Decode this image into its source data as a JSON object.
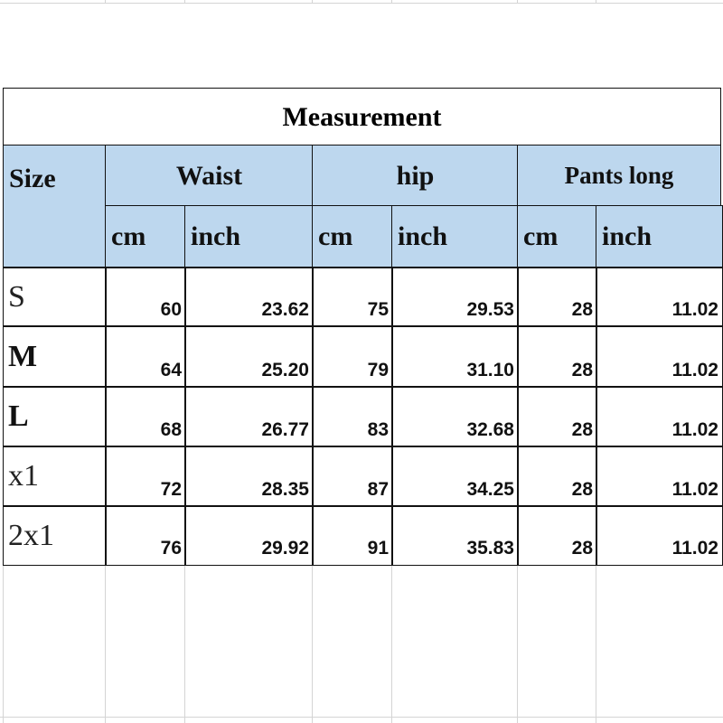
{
  "title": "Measurement",
  "headers": {
    "size": "Size",
    "groups": [
      "Waist",
      "hip",
      "Pants long"
    ],
    "units": [
      "cm",
      "inch",
      "cm",
      "inch",
      "cm",
      "inch"
    ]
  },
  "header_fill": "#bdd7ee",
  "rows": [
    {
      "size": "S",
      "values": [
        "60",
        "23.62",
        "75",
        "29.53",
        "28",
        "11.02"
      ]
    },
    {
      "size": "M",
      "values": [
        "64",
        "25.20",
        "79",
        "31.10",
        "28",
        "11.02"
      ]
    },
    {
      "size": "L",
      "values": [
        "68",
        "26.77",
        "83",
        "32.68",
        "28",
        "11.02"
      ]
    },
    {
      "size": "x1",
      "values": [
        "72",
        "28.35",
        "87",
        "34.25",
        "28",
        "11.02"
      ]
    },
    {
      "size": "2x1",
      "values": [
        "76",
        "29.92",
        "91",
        "35.83",
        "28",
        "11.02"
      ]
    }
  ]
}
